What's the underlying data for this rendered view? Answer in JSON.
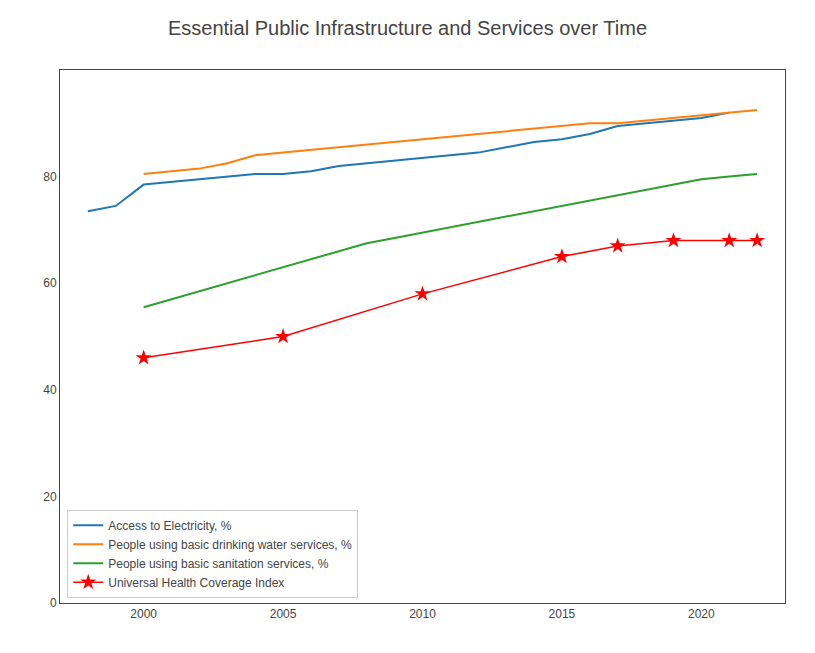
{
  "chart_data": {
    "type": "line",
    "title": "Essential Public Infrastructure and Services over Time",
    "series": [
      {
        "name": "Access to Electricity, %",
        "color": "#1f77b4",
        "x": [
          1998,
          1999,
          2000,
          2001,
          2002,
          2003,
          2004,
          2005,
          2006,
          2007,
          2008,
          2009,
          2010,
          2011,
          2012,
          2013,
          2014,
          2015,
          2016,
          2017,
          2018,
          2019,
          2020,
          2021
        ],
        "values": [
          73.5,
          74.5,
          78.5,
          79.0,
          79.5,
          80.0,
          80.5,
          80.5,
          81.0,
          82.0,
          82.5,
          83.0,
          83.5,
          84.0,
          84.5,
          85.5,
          86.5,
          87.0,
          88.0,
          89.5,
          90.0,
          90.5,
          91.0,
          92.0
        ]
      },
      {
        "name": "People using basic drinking water services, %",
        "color": "#ff7f0e",
        "x": [
          2000,
          2001,
          2002,
          2003,
          2004,
          2005,
          2006,
          2007,
          2008,
          2009,
          2010,
          2011,
          2012,
          2013,
          2014,
          2015,
          2016,
          2017,
          2018,
          2019,
          2020,
          2021,
          2022
        ],
        "values": [
          80.5,
          81.0,
          81.5,
          82.5,
          84.0,
          84.5,
          85.0,
          85.5,
          86.0,
          86.5,
          87.0,
          87.5,
          88.0,
          88.5,
          89.0,
          89.5,
          90.0,
          90.0,
          90.5,
          91.0,
          91.5,
          92.0,
          92.5
        ]
      },
      {
        "name": "People using basic sanitation services, %",
        "color": "#2ca02c",
        "x": [
          2000,
          2001,
          2002,
          2003,
          2004,
          2005,
          2006,
          2007,
          2008,
          2009,
          2010,
          2011,
          2012,
          2013,
          2014,
          2015,
          2016,
          2017,
          2018,
          2019,
          2020,
          2021,
          2022
        ],
        "values": [
          55.5,
          57.0,
          58.5,
          60.0,
          61.5,
          63.0,
          64.5,
          66.0,
          67.5,
          68.5,
          69.5,
          70.5,
          71.5,
          72.5,
          73.5,
          74.5,
          75.5,
          76.5,
          77.5,
          78.5,
          79.5,
          80.0,
          80.5
        ]
      },
      {
        "name": "Universal Health Coverage Index",
        "color": "red",
        "marker": "star",
        "x": [
          2000,
          2005,
          2010,
          2015,
          2017,
          2019,
          2021,
          2022
        ],
        "values": [
          46,
          50,
          58,
          65,
          67,
          68,
          68,
          68
        ]
      }
    ],
    "xlim": [
      1997,
      2023
    ],
    "xticks": [
      2000,
      2005,
      2010,
      2015,
      2020
    ],
    "ylim": [
      0,
      100
    ],
    "yticks": [
      0,
      20,
      40,
      60,
      80
    ],
    "grid": false,
    "legend": "lower left"
  }
}
